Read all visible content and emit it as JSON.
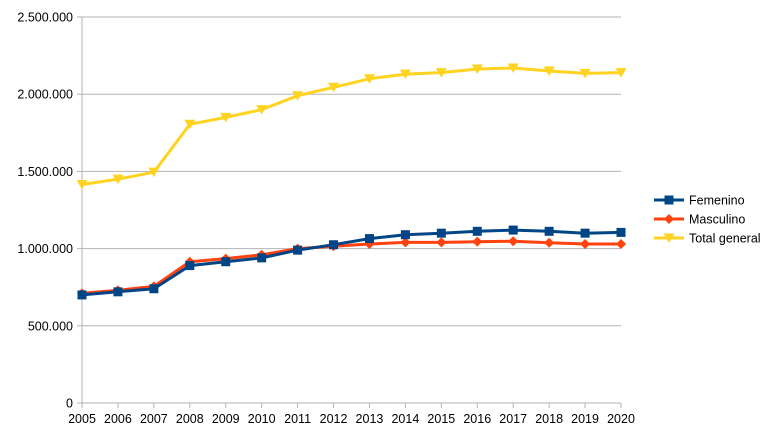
{
  "chart_data": {
    "type": "line",
    "title": "",
    "xlabel": "",
    "ylabel": "",
    "x": [
      "2005",
      "2006",
      "2007",
      "2008",
      "2009",
      "2010",
      "2011",
      "2012",
      "2013",
      "2014",
      "2015",
      "2016",
      "2017",
      "2018",
      "2019",
      "2020"
    ],
    "ylim": [
      0,
      2500000
    ],
    "yticks": [
      0,
      500000,
      1000000,
      1500000,
      2000000,
      2500000
    ],
    "ytick_labels": [
      "0",
      "500.000",
      "1.000.000",
      "1.500.000",
      "2.000.000",
      "2.500.000"
    ],
    "grid": "horizontal",
    "legend_position": "right",
    "series": [
      {
        "name": "Femenino",
        "color": "#004586",
        "marker": "square",
        "values": [
          700000,
          720000,
          740000,
          890000,
          915000,
          940000,
          990000,
          1025000,
          1065000,
          1090000,
          1100000,
          1112000,
          1120000,
          1112000,
          1100000,
          1105000
        ]
      },
      {
        "name": "Masculino",
        "color": "#ff420e",
        "marker": "diamond",
        "values": [
          710000,
          730000,
          755000,
          915000,
          935000,
          960000,
          1000000,
          1015000,
          1030000,
          1040000,
          1040000,
          1045000,
          1048000,
          1038000,
          1030000,
          1030000
        ]
      },
      {
        "name": "Total general",
        "color": "#ffd320",
        "marker": "triangle-down",
        "values": [
          1415000,
          1450000,
          1495000,
          1805000,
          1850000,
          1900000,
          1990000,
          2045000,
          2100000,
          2130000,
          2140000,
          2163000,
          2170000,
          2150000,
          2135000,
          2140000
        ]
      }
    ]
  }
}
